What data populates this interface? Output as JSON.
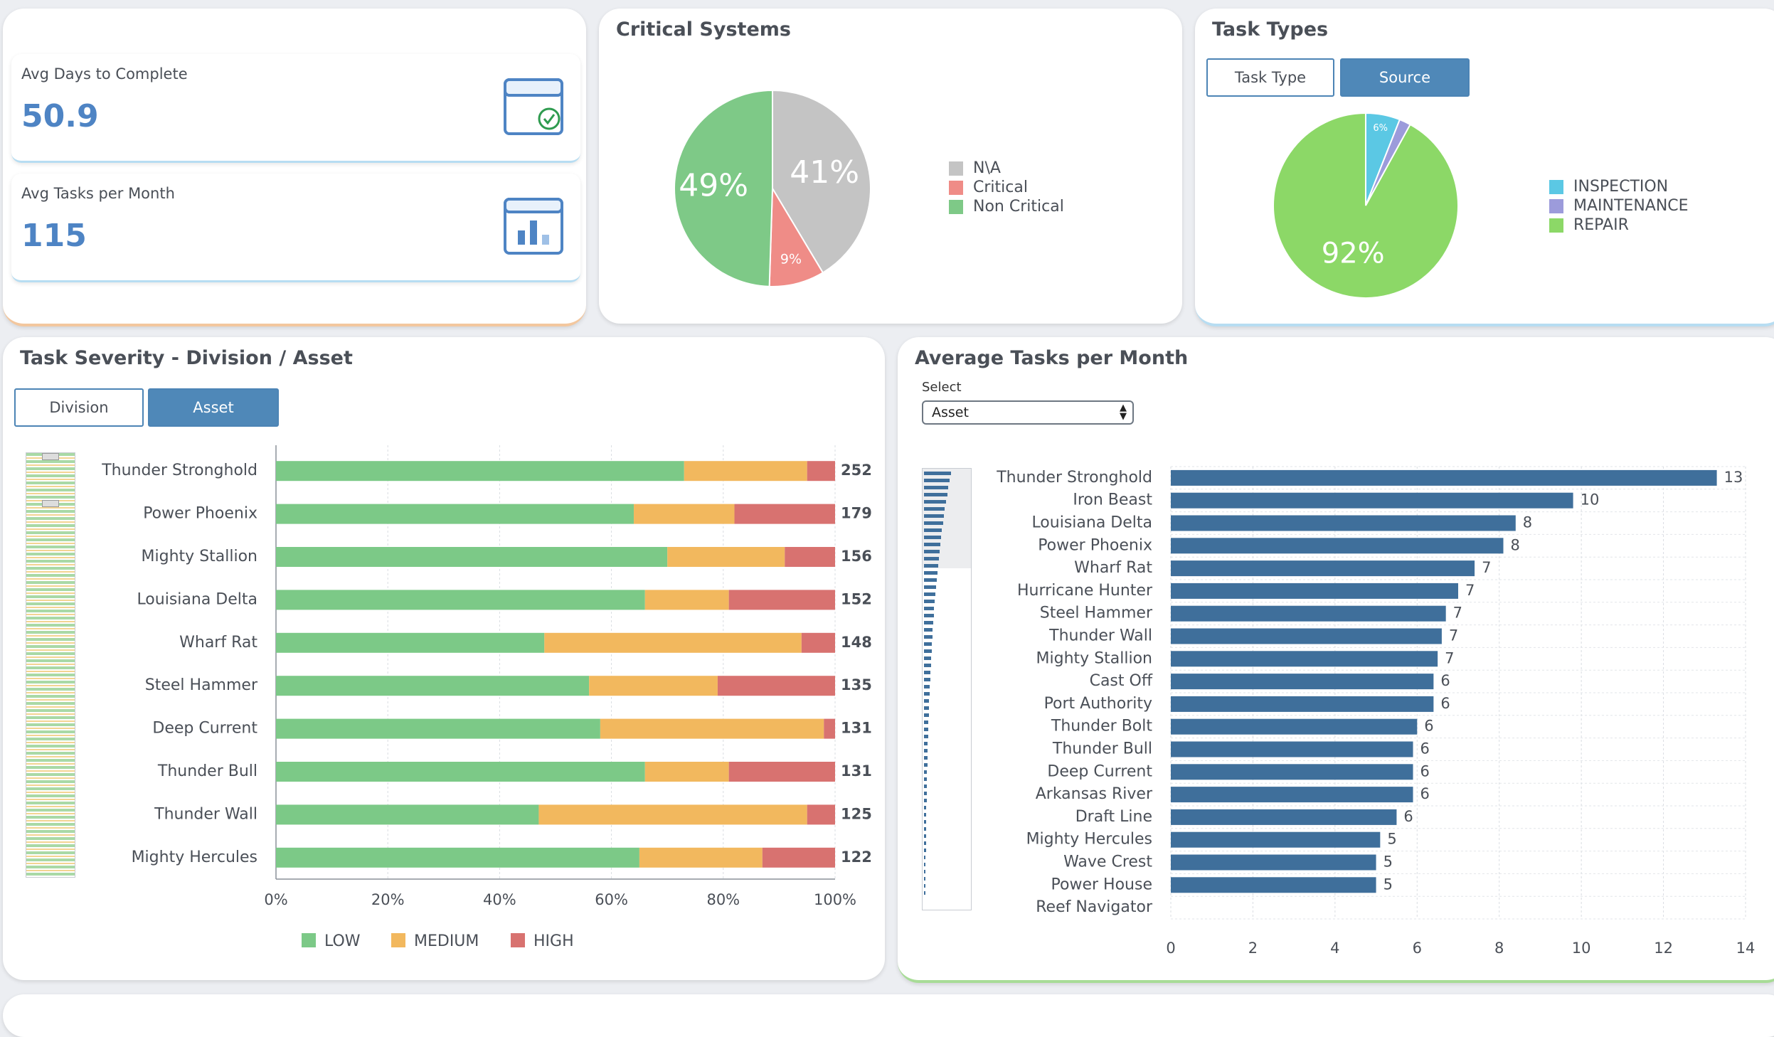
{
  "kpis": [
    {
      "label": "Avg Days to Complete",
      "value": "50.9",
      "icon": "calendar-check-icon"
    },
    {
      "label": "Avg Tasks per Month",
      "value": "115",
      "icon": "bar-chart-icon"
    }
  ],
  "critical_systems": {
    "title": "Critical Systems"
  },
  "task_types": {
    "title": "Task Types",
    "buttons": {
      "task_type": "Task Type",
      "source": "Source"
    }
  },
  "severity": {
    "title": "Task Severity - Division / Asset",
    "buttons": {
      "division": "Division",
      "asset": "Asset"
    }
  },
  "avg_tasks": {
    "title": "Average Tasks per Month",
    "select_label": "Select",
    "select_value": "Asset"
  },
  "colors": {
    "accent": "#4f88b8",
    "kpi_value": "#4e84c4",
    "bar_blue": "#3f6f9b",
    "low": "#7cc987",
    "medium": "#f2b85e",
    "high": "#d87270"
  },
  "chart_data": [
    {
      "type": "pie",
      "labels": [
        "N\\A",
        "Critical",
        "Non Critical"
      ],
      "values": [
        41,
        9,
        49
      ],
      "data_labels": [
        "41%",
        "9%",
        "49%"
      ],
      "colors": [
        "#c4c4c4",
        "#ef8c87",
        "#7ec987"
      ],
      "legend": "right"
    },
    {
      "type": "pie",
      "labels": [
        "INSPECTION",
        "MAINTENANCE",
        "REPAIR"
      ],
      "values": [
        6,
        2,
        92
      ],
      "data_labels": [
        "6%",
        "",
        "92%"
      ],
      "colors": [
        "#5bc8e4",
        "#9c9bdb",
        "#8cd867"
      ],
      "legend": "right"
    },
    {
      "type": "bar",
      "orientation": "horizontal",
      "stacked": "percent",
      "categories": [
        "Thunder Stronghold",
        "Power Phoenix",
        "Mighty Stallion",
        "Louisiana Delta",
        "Wharf Rat",
        "Steel Hammer",
        "Deep Current",
        "Thunder Bull",
        "Thunder Wall",
        "Mighty Hercules"
      ],
      "series": [
        {
          "name": "LOW",
          "values": [
            73,
            64,
            70,
            66,
            48,
            56,
            58,
            66,
            47,
            65
          ]
        },
        {
          "name": "MEDIUM",
          "values": [
            22,
            18,
            21,
            15,
            46,
            23,
            40,
            15,
            48,
            22
          ]
        },
        {
          "name": "HIGH",
          "values": [
            5,
            18,
            9,
            19,
            6,
            21,
            2,
            19,
            5,
            13
          ]
        }
      ],
      "totals": [
        252,
        179,
        156,
        152,
        148,
        135,
        131,
        131,
        125,
        122
      ],
      "x_ticks": [
        "0%",
        "20%",
        "40%",
        "60%",
        "80%",
        "100%"
      ],
      "xlim": [
        0,
        100
      ],
      "legend": "bottom",
      "grid": true
    },
    {
      "type": "bar",
      "orientation": "horizontal",
      "categories": [
        "Thunder Stronghold",
        "Iron Beast",
        "Louisiana Delta",
        "Power Phoenix",
        "Wharf Rat",
        "Hurricane Hunter",
        "Steel Hammer",
        "Thunder Wall",
        "Mighty Stallion",
        "Cast Off",
        "Port Authority",
        "Thunder Bolt",
        "Thunder Bull",
        "Deep Current",
        "Arkansas River",
        "Draft Line",
        "Mighty Hercules",
        "Wave Crest",
        "Power House",
        "Reef Navigator"
      ],
      "values": [
        13.3,
        9.8,
        8.4,
        8.1,
        7.4,
        7.0,
        6.7,
        6.6,
        6.5,
        6.4,
        6.4,
        6.0,
        5.9,
        5.9,
        5.9,
        5.5,
        5.1,
        5.0,
        5.0,
        null
      ],
      "data_labels": [
        "13",
        "10",
        "8",
        "8",
        "7",
        "7",
        "7",
        "7",
        "7",
        "6",
        "6",
        "6",
        "6",
        "6",
        "6",
        "6",
        "5",
        "5",
        "5",
        ""
      ],
      "x_ticks": [
        "0",
        "2",
        "4",
        "6",
        "8",
        "10",
        "12",
        "14"
      ],
      "xlim": [
        0,
        14
      ],
      "grid": true
    }
  ]
}
